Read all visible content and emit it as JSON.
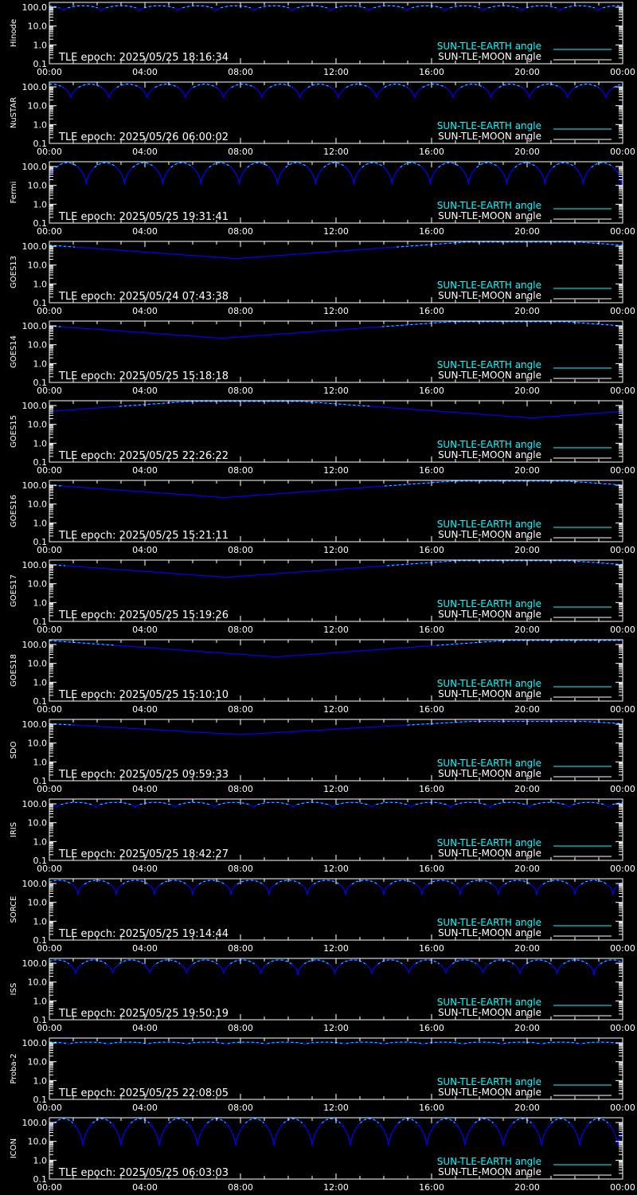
{
  "colors": {
    "background": "#000000",
    "axes": "#ffffff",
    "earth_series": "#00ffff",
    "moon_series": "#ffffff",
    "curve": "#0000ff"
  },
  "chart_data": {
    "type": "line",
    "x_tick_labels": [
      "00:00",
      "04:00",
      "08:00",
      "12:00",
      "16:00",
      "20:00",
      "00:00"
    ],
    "x_range_hours": [
      0,
      24
    ],
    "y_scale": "log",
    "y_range": [
      0.1,
      180
    ],
    "y_tick_labels": [
      "100.0",
      "10.0",
      "1.0",
      "0.1"
    ],
    "legend": {
      "placement": "bottom-right",
      "earth": "SUN-TLE-EARTH angle",
      "moon": "SUN-TLE-MOON angle"
    },
    "panels": [
      {
        "name": "Hinode",
        "epoch": "TLE epoch: 2025/05/25 18:16:34",
        "kind": "periodic",
        "period_h": 1.6,
        "max": 120,
        "min": 60,
        "phase_h": 0.6
      },
      {
        "name": "NuSTAR",
        "epoch": "TLE epoch: 2025/05/26 06:00:02",
        "kind": "periodic",
        "period_h": 1.6,
        "max": 140,
        "min": 20,
        "phase_h": 0.9
      },
      {
        "name": "Fermi",
        "epoch": "TLE epoch: 2025/05/25 19:31:41",
        "kind": "periodic",
        "period_h": 1.6,
        "max": 160,
        "min": 8,
        "phase_h": 1.55
      },
      {
        "name": "GOES13",
        "epoch": "TLE epoch: 2025/05/24 07:43:38",
        "kind": "daily",
        "max": 165,
        "min": 22,
        "min_h": 7.8
      },
      {
        "name": "GOES14",
        "epoch": "TLE epoch: 2025/05/25 15:18:18",
        "kind": "daily",
        "max": 165,
        "min": 22,
        "min_h": 7.2
      },
      {
        "name": "GOES15",
        "epoch": "TLE epoch: 2025/05/25 22:26:22",
        "kind": "daily",
        "max": 165,
        "min": 22,
        "min_h": 20.2
      },
      {
        "name": "GOES16",
        "epoch": "TLE epoch: 2025/05/25 15:21:11",
        "kind": "daily",
        "max": 165,
        "min": 22,
        "min_h": 7.3
      },
      {
        "name": "GOES17",
        "epoch": "TLE epoch: 2025/05/25 15:19:26",
        "kind": "daily",
        "max": 165,
        "min": 22,
        "min_h": 7.4
      },
      {
        "name": "GOES18",
        "epoch": "TLE epoch: 2025/05/25 15:10:10",
        "kind": "daily",
        "max": 165,
        "min": 22,
        "min_h": 9.5
      },
      {
        "name": "SDO",
        "epoch": "TLE epoch: 2025/05/25 09:59:33",
        "kind": "daily",
        "max": 140,
        "min": 28,
        "min_h": 8.0
      },
      {
        "name": "IRIS",
        "epoch": "TLE epoch: 2025/05/25 18:42:27",
        "kind": "periodic",
        "period_h": 1.65,
        "max": 120,
        "min": 60,
        "phase_h": 0.3
      },
      {
        "name": "SORCE",
        "epoch": "TLE epoch: 2025/05/25 19:14:44",
        "kind": "periodic",
        "period_h": 1.6,
        "max": 150,
        "min": 25,
        "phase_h": 1.2
      },
      {
        "name": "ISS",
        "epoch": "TLE epoch: 2025/05/25 19:50:19",
        "kind": "periodic",
        "period_h": 1.55,
        "max": 150,
        "min": 22,
        "phase_h": 1.1
      },
      {
        "name": "Proba-2",
        "epoch": "TLE epoch: 2025/05/25 22:08:05",
        "kind": "periodic",
        "period_h": 1.65,
        "max": 110,
        "min": 80,
        "phase_h": 0.8
      },
      {
        "name": "ICON",
        "epoch": "TLE epoch: 2025/05/25 06:03:03",
        "kind": "periodic",
        "period_h": 1.6,
        "max": 160,
        "min": 3,
        "phase_h": 1.4
      }
    ]
  }
}
